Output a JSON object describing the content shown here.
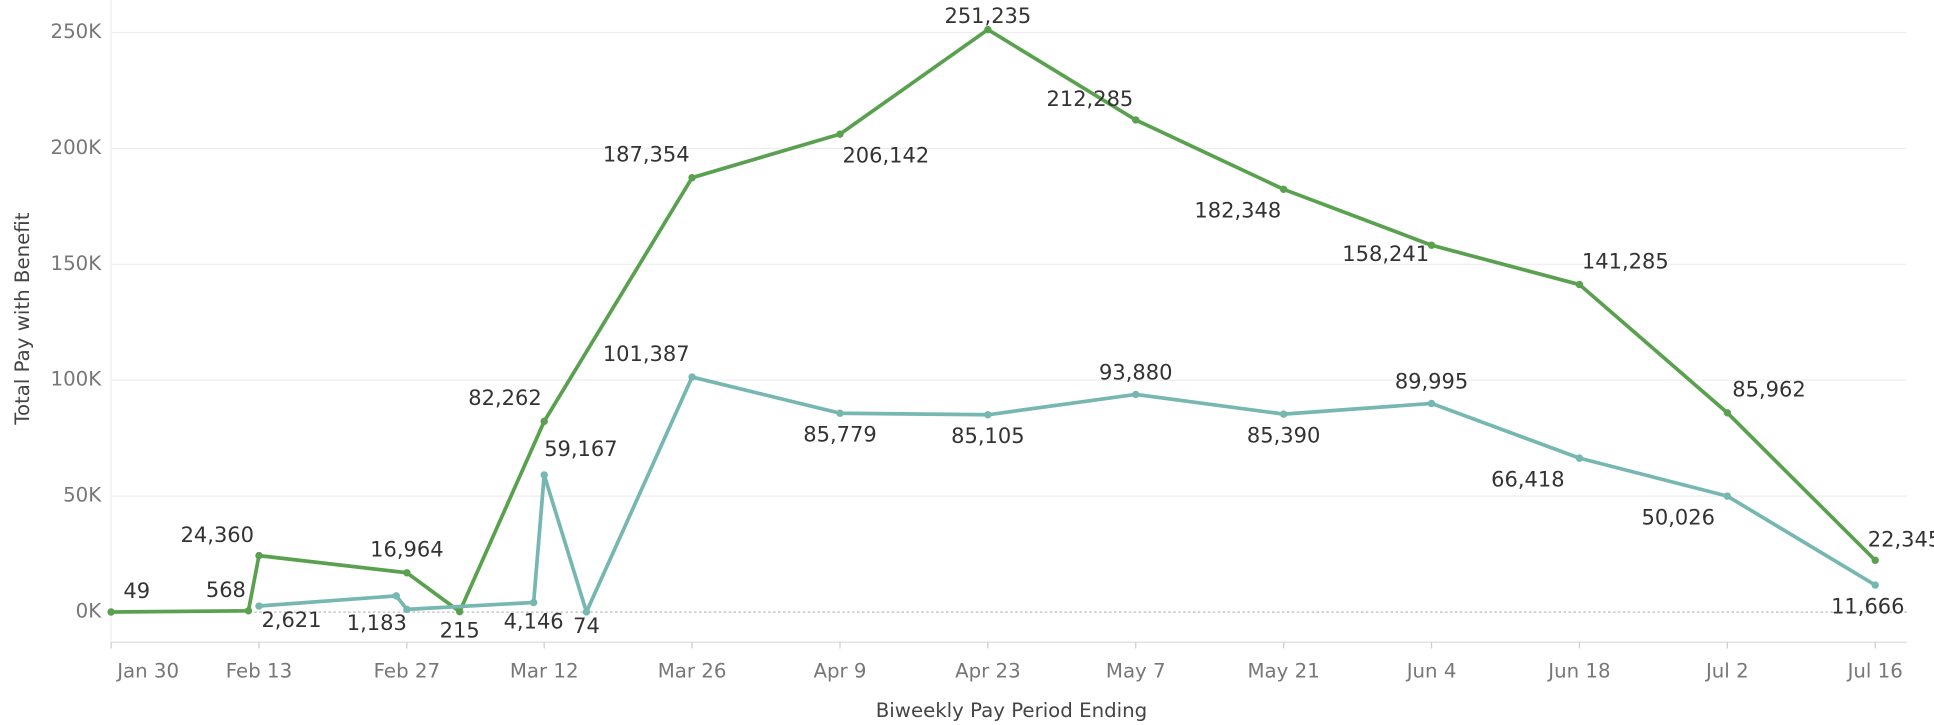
{
  "chart_data": {
    "type": "line",
    "x_title": "Biweekly Pay Period Ending",
    "y_title": "Total Pay with Benefit",
    "xlim": [
      "Jan 30",
      "Jul 19"
    ],
    "xticks": [
      "Jan 30",
      "Feb 13",
      "Feb 27",
      "Mar 12",
      "Mar 26",
      "Apr 9",
      "Apr 23",
      "May 7",
      "May 21",
      "Jun 4",
      "Jun 18",
      "Jul 2",
      "Jul 16"
    ],
    "ylim": [
      -13000,
      264000
    ],
    "yticks": [
      {
        "value": 0,
        "label": "0K"
      },
      {
        "value": 50000,
        "label": "50K"
      },
      {
        "value": 100000,
        "label": "100K"
      },
      {
        "value": 150000,
        "label": "150K"
      },
      {
        "value": 200000,
        "label": "200K"
      },
      {
        "value": 250000,
        "label": "250K"
      }
    ],
    "grid": true,
    "series": [
      {
        "color": "#59a14f",
        "x": [
          "Jan 30",
          "Feb 12",
          "Feb 13",
          "Feb 27",
          "Mar 4",
          "Mar 12",
          "Mar 26",
          "Apr 9",
          "Apr 23",
          "May 7",
          "May 21",
          "Jun 4",
          "Jun 18",
          "Jul 2",
          "Jul 16"
        ],
        "values": [
          49,
          568,
          24360,
          16964,
          215,
          82262,
          187354,
          206142,
          251235,
          212285,
          182348,
          158241,
          141285,
          85962,
          22345
        ],
        "value_labels": [
          "49",
          "568",
          "24,360",
          "16,964",
          "215",
          "82,262",
          "187,354",
          "206,142",
          "251,235",
          "212,285",
          "182,348",
          "158,241",
          "141,285",
          "85,962",
          "22,345"
        ]
      },
      {
        "color": "#76b7b2",
        "x": [
          "Feb 13",
          "Feb 26",
          "Feb 27",
          "Mar 11",
          "Mar 12",
          "Mar 16",
          "Mar 26",
          "Apr 9",
          "Apr 23",
          "May 7",
          "May 21",
          "Jun 4",
          "Jun 18",
          "Jul 2",
          "Jul 16"
        ],
        "values": [
          2621,
          7000,
          1183,
          4146,
          59167,
          74,
          101387,
          85779,
          85105,
          93880,
          85390,
          89995,
          66418,
          50026,
          11666
        ],
        "value_labels": [
          "2,621",
          null,
          "1,183",
          "4,146",
          "59,167",
          "74",
          "101,387",
          "85,779",
          "85,105",
          "93,880",
          "85,390",
          "89,995",
          "66,418",
          "50,026",
          "11,666"
        ]
      }
    ]
  }
}
